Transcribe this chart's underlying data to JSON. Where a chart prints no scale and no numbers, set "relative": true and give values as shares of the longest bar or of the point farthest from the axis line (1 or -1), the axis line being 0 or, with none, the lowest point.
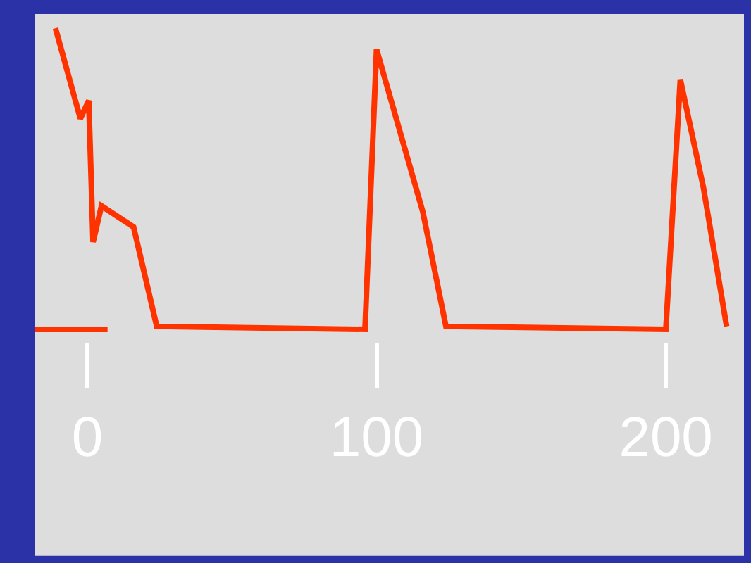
{
  "chart_data": {
    "type": "line",
    "relative": true,
    "xlim": [
      -18,
      227
    ],
    "xticks": [
      0,
      100,
      200
    ],
    "grid": false,
    "marker": "none",
    "line_style": "solid",
    "series": [
      {
        "color": "#ff3300",
        "x": [
          -11,
          -2.4,
          0.5,
          2,
          4.9,
          16,
          24,
          96,
          100,
          116,
          124,
          200,
          205,
          213,
          221
        ],
        "values": [
          1,
          0.7,
          0.76,
          0.29,
          0.41,
          0.34,
          0.01,
          0,
          0.93,
          0.39,
          0.01,
          0,
          0.83,
          0.47,
          0.01
        ]
      },
      {
        "color": "#ff3300",
        "x": [
          -18,
          7
        ],
        "values": [
          0,
          0
        ]
      }
    ]
  }
}
